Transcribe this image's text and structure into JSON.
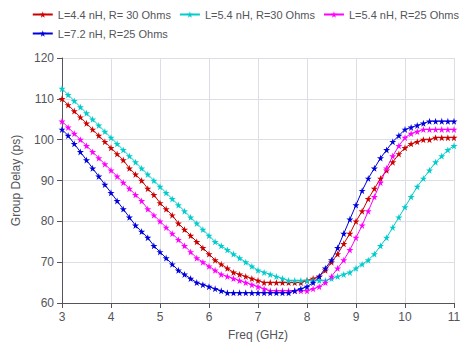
{
  "chart_data": {
    "type": "line",
    "xlabel": "Freq (GHz)",
    "ylabel": "Group Delay (ps)",
    "xlim": [
      3,
      11
    ],
    "ylim": [
      60,
      120
    ],
    "xticks": [
      3,
      4,
      5,
      6,
      7,
      8,
      9,
      10,
      11
    ],
    "yticks": [
      60,
      70,
      80,
      90,
      100,
      110,
      120
    ],
    "grid": true,
    "legend": "upper right",
    "x": [
      3.0,
      3.125,
      3.25,
      3.375,
      3.5,
      3.625,
      3.75,
      3.875,
      4.0,
      4.125,
      4.25,
      4.375,
      4.5,
      4.625,
      4.75,
      4.875,
      5.0,
      5.125,
      5.25,
      5.375,
      5.5,
      5.625,
      5.75,
      5.875,
      6.0,
      6.125,
      6.25,
      6.375,
      6.5,
      6.625,
      6.75,
      6.875,
      7.0,
      7.125,
      7.25,
      7.375,
      7.5,
      7.625,
      7.75,
      7.875,
      8.0,
      8.125,
      8.25,
      8.375,
      8.5,
      8.625,
      8.75,
      8.875,
      9.0,
      9.125,
      9.25,
      9.375,
      9.5,
      9.625,
      9.75,
      9.875,
      10.0,
      10.125,
      10.25,
      10.375,
      10.5,
      10.625,
      10.75,
      10.875,
      11.0
    ],
    "series": [
      {
        "name": "L=4.4 nH, R= 30 Ohms",
        "color": "#cc0000",
        "marker": "star",
        "values": [
          110.0,
          108.5,
          107.0,
          105.5,
          104.0,
          102.5,
          101.0,
          99.5,
          98.0,
          96.5,
          95.0,
          93.0,
          91.5,
          90.0,
          88.0,
          86.5,
          84.5,
          83.0,
          81.5,
          79.5,
          78.0,
          76.5,
          75.0,
          73.5,
          72.0,
          70.5,
          69.5,
          68.5,
          67.5,
          67.0,
          66.5,
          66.0,
          65.5,
          65.0,
          65.0,
          65.0,
          65.0,
          65.0,
          65.0,
          65.0,
          65.5,
          66.0,
          66.5,
          68.0,
          70.0,
          72.0,
          74.5,
          77.0,
          80.0,
          82.5,
          85.5,
          88.0,
          90.5,
          92.5,
          94.5,
          96.5,
          98.0,
          99.0,
          99.5,
          100.0,
          100.0,
          100.5,
          100.5,
          100.5,
          100.5
        ]
      },
      {
        "name": "L=5.4 nH, R=30 Ohms",
        "color": "#00cccc",
        "marker": "star",
        "values": [
          112.5,
          111.0,
          109.5,
          108.0,
          106.5,
          105.0,
          103.5,
          102.0,
          100.5,
          99.0,
          97.5,
          96.0,
          94.5,
          93.0,
          91.5,
          90.0,
          88.5,
          87.0,
          85.5,
          84.0,
          82.5,
          81.0,
          79.5,
          78.0,
          76.5,
          75.0,
          74.0,
          73.0,
          72.0,
          71.0,
          70.0,
          69.0,
          68.0,
          67.5,
          67.0,
          66.5,
          66.0,
          65.5,
          65.5,
          65.5,
          65.5,
          65.5,
          65.5,
          65.5,
          66.0,
          66.5,
          67.0,
          67.5,
          68.5,
          69.5,
          70.5,
          72.0,
          74.0,
          76.0,
          78.5,
          81.0,
          83.5,
          86.0,
          88.5,
          90.5,
          92.5,
          94.5,
          96.0,
          97.5,
          98.5
        ]
      },
      {
        "name": "L=5.4 nH, R=25 Ohms",
        "color": "#ff00ff",
        "marker": "star",
        "values": [
          104.5,
          103.0,
          101.5,
          100.0,
          98.5,
          97.0,
          95.5,
          94.0,
          92.5,
          91.0,
          89.5,
          88.0,
          86.5,
          85.0,
          83.0,
          81.5,
          80.0,
          78.5,
          77.0,
          75.5,
          74.0,
          72.5,
          71.0,
          70.0,
          69.0,
          68.0,
          67.0,
          66.5,
          66.0,
          65.5,
          65.0,
          64.5,
          64.0,
          63.5,
          63.0,
          63.0,
          63.0,
          63.0,
          63.0,
          63.0,
          63.0,
          63.5,
          64.0,
          65.0,
          66.5,
          68.5,
          70.5,
          73.0,
          76.0,
          79.0,
          82.5,
          86.0,
          89.5,
          93.0,
          96.0,
          98.5,
          100.5,
          101.5,
          102.0,
          102.5,
          102.5,
          102.5,
          102.5,
          102.5,
          102.5
        ]
      },
      {
        "name": "L=7.2 nH, R=25 Ohms",
        "color": "#0000dd",
        "marker": "star",
        "values": [
          102.5,
          101.0,
          99.0,
          97.0,
          95.0,
          93.0,
          91.0,
          89.0,
          87.0,
          85.0,
          83.0,
          81.0,
          79.0,
          77.5,
          76.0,
          74.0,
          72.5,
          71.0,
          69.5,
          68.0,
          67.0,
          66.0,
          65.0,
          64.5,
          64.0,
          63.5,
          63.0,
          62.5,
          62.5,
          62.5,
          62.5,
          62.5,
          62.5,
          62.5,
          62.5,
          62.5,
          62.5,
          62.5,
          63.0,
          63.5,
          64.0,
          65.0,
          66.5,
          68.5,
          70.5,
          73.5,
          77.0,
          80.5,
          84.0,
          87.5,
          90.5,
          93.0,
          95.5,
          97.5,
          99.5,
          101.0,
          102.5,
          103.0,
          103.5,
          104.0,
          104.5,
          104.5,
          104.5,
          104.5,
          104.5
        ]
      }
    ]
  }
}
